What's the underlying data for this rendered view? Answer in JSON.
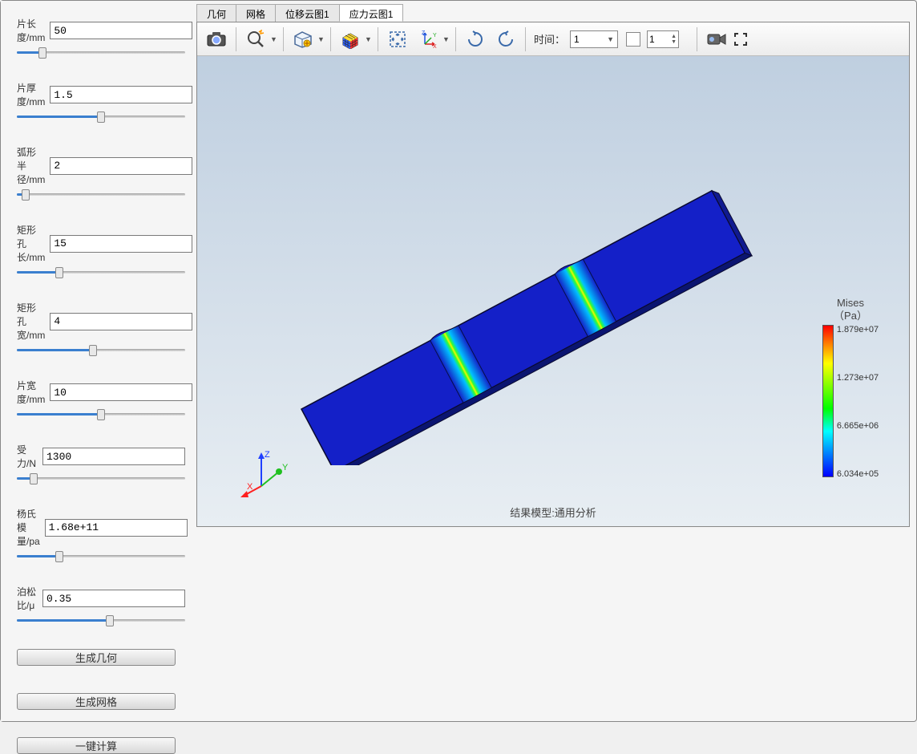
{
  "params": [
    {
      "label": "片长度/mm",
      "value": "50",
      "slider": 15
    },
    {
      "label": "片厚度/mm",
      "value": "1.5",
      "slider": 50
    },
    {
      "label": "弧形半径/mm",
      "value": "2",
      "slider": 5
    },
    {
      "label": "矩形孔长/mm",
      "value": "15",
      "slider": 25
    },
    {
      "label": "矩形孔宽/mm",
      "value": "4",
      "slider": 45
    },
    {
      "label": "片宽度/mm",
      "value": "10",
      "slider": 50
    },
    {
      "label": "受力/N",
      "value": "1300",
      "slider": 10
    },
    {
      "label": "杨氏模量/pa",
      "value": "1.68e+11",
      "slider": 25
    },
    {
      "label": "泊松比/μ",
      "value": "0.35",
      "slider": 55
    }
  ],
  "buttons": {
    "gen_geom": "生成几何",
    "gen_mesh": "生成网格",
    "calc": "一键计算"
  },
  "tabs": [
    "几何",
    "网格",
    "位移云图1",
    "应力云图1"
  ],
  "active_tab": 3,
  "toolbar": {
    "time_label": "时间：",
    "time_value": "1",
    "frame_value": "1"
  },
  "legend": {
    "title_line1": "Mises",
    "title_line2": "（Pa）",
    "ticks": [
      "1.879e+07",
      "1.273e+07",
      "6.665e+06",
      "6.034e+05"
    ]
  },
  "result_label": "结果模型:通用分析",
  "triad": {
    "x": "X",
    "y": "Y",
    "z": "Z"
  },
  "colors": {
    "beam_main": "#1420c8",
    "beam_highlight_yellow": "#f2e600",
    "beam_highlight_green": "#2dff2d",
    "beam_highlight_cyan": "#00e0ff",
    "beam_edge": "#0a0a30"
  }
}
